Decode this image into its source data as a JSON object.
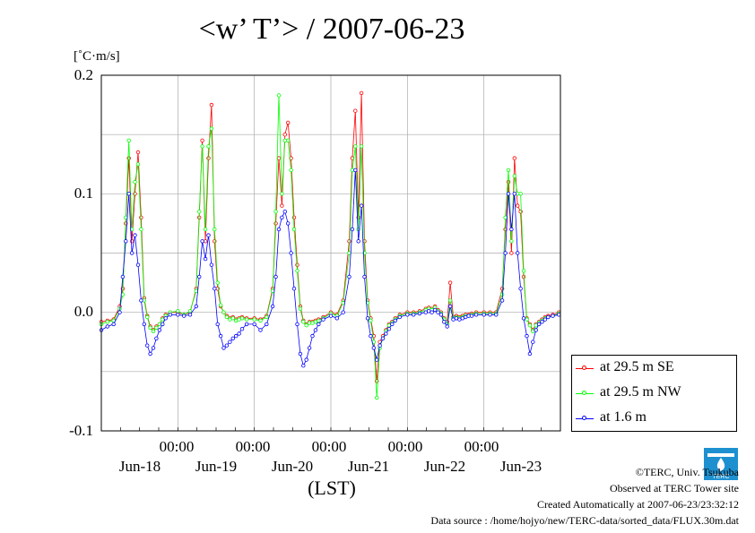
{
  "chart_data": {
    "type": "line",
    "title": "<w’ T’> / 2007-06-23",
    "ylabel": "[˚C·m/s]",
    "xlabel": "(LST)",
    "ylim": [
      -0.1,
      0.2
    ],
    "yticks": [
      "0.2",
      "0.1",
      "0.0",
      "-0.1"
    ],
    "xlim_days": [
      0,
      6
    ],
    "x_time_labels": [
      "00:00",
      "00:00",
      "00:00",
      "00:00",
      "00:00"
    ],
    "x_date_labels": [
      "Jun-18",
      "Jun-19",
      "Jun-20",
      "Jun-21",
      "Jun-22",
      "Jun-23"
    ],
    "grid": true,
    "legend_position": "lower-right outside",
    "x_days": [
      0.0,
      0.08,
      0.16,
      0.24,
      0.28,
      0.32,
      0.36,
      0.4,
      0.44,
      0.48,
      0.52,
      0.56,
      0.6,
      0.64,
      0.68,
      0.72,
      0.76,
      0.8,
      0.84,
      0.9,
      1.0,
      1.08,
      1.16,
      1.24,
      1.28,
      1.32,
      1.36,
      1.4,
      1.44,
      1.48,
      1.52,
      1.56,
      1.6,
      1.64,
      1.68,
      1.72,
      1.76,
      1.8,
      1.84,
      1.9,
      2.0,
      2.08,
      2.16,
      2.24,
      2.28,
      2.32,
      2.36,
      2.4,
      2.44,
      2.48,
      2.52,
      2.56,
      2.6,
      2.64,
      2.68,
      2.72,
      2.76,
      2.8,
      2.84,
      2.9,
      3.0,
      3.08,
      3.16,
      3.24,
      3.28,
      3.32,
      3.36,
      3.4,
      3.44,
      3.48,
      3.52,
      3.56,
      3.6,
      3.64,
      3.68,
      3.72,
      3.76,
      3.8,
      3.84,
      3.9,
      4.0,
      4.08,
      4.16,
      4.24,
      4.28,
      4.32,
      4.36,
      4.4,
      4.44,
      4.48,
      4.52,
      4.56,
      4.6,
      4.64,
      4.68,
      4.72,
      4.76,
      4.8,
      4.84,
      4.9,
      5.0,
      5.08,
      5.16,
      5.24,
      5.28,
      5.32,
      5.36,
      5.4,
      5.44,
      5.48,
      5.52,
      5.56,
      5.6,
      5.64,
      5.68,
      5.72,
      5.76,
      5.8,
      5.84,
      5.9,
      5.98
    ],
    "series": [
      {
        "name": "at 29.5 m SE",
        "color": "#ff0000",
        "values": [
          -0.008,
          -0.007,
          -0.006,
          0.005,
          0.02,
          0.075,
          0.13,
          0.06,
          0.1,
          0.135,
          0.08,
          0.012,
          -0.003,
          -0.012,
          -0.015,
          -0.012,
          -0.01,
          -0.005,
          -0.002,
          0.0,
          0.0,
          -0.002,
          0.0,
          0.02,
          0.08,
          0.145,
          0.06,
          0.13,
          0.175,
          0.06,
          0.02,
          0.005,
          0.0,
          -0.003,
          -0.005,
          -0.004,
          -0.006,
          -0.005,
          -0.004,
          -0.005,
          -0.005,
          -0.006,
          -0.003,
          0.02,
          0.075,
          0.13,
          0.09,
          0.15,
          0.16,
          0.13,
          0.08,
          0.04,
          0.005,
          -0.007,
          -0.01,
          -0.008,
          -0.008,
          -0.007,
          -0.006,
          -0.004,
          0.0,
          -0.002,
          0.01,
          0.06,
          0.13,
          0.17,
          0.08,
          0.185,
          0.06,
          0.01,
          -0.005,
          -0.02,
          -0.058,
          -0.025,
          -0.02,
          -0.015,
          -0.01,
          -0.008,
          -0.005,
          -0.002,
          0.0,
          0.0,
          0.001,
          0.003,
          0.004,
          0.003,
          0.005,
          0.002,
          0.0,
          -0.005,
          -0.008,
          0.025,
          -0.004,
          -0.003,
          -0.004,
          -0.003,
          -0.002,
          -0.002,
          -0.001,
          0.0,
          0.0,
          0.0,
          0.0,
          0.02,
          0.07,
          0.11,
          0.05,
          0.13,
          0.09,
          0.085,
          0.03,
          -0.005,
          -0.01,
          -0.015,
          -0.01,
          -0.008,
          -0.006,
          -0.004,
          -0.003,
          -0.002,
          0.0
        ]
      },
      {
        "name": "at 29.5 m NW",
        "color": "#00ff00",
        "values": [
          -0.01,
          -0.008,
          -0.007,
          0.003,
          0.015,
          0.08,
          0.145,
          0.07,
          0.11,
          0.125,
          0.07,
          0.01,
          -0.004,
          -0.013,
          -0.016,
          -0.013,
          -0.01,
          -0.006,
          -0.003,
          0.0,
          0.001,
          -0.002,
          0.001,
          0.018,
          0.085,
          0.14,
          0.07,
          0.14,
          0.155,
          0.07,
          0.025,
          0.006,
          0.0,
          -0.004,
          -0.006,
          -0.005,
          -0.007,
          -0.006,
          -0.005,
          -0.006,
          -0.006,
          -0.007,
          -0.004,
          0.018,
          0.085,
          0.183,
          0.1,
          0.145,
          0.145,
          0.12,
          0.07,
          0.035,
          0.003,
          -0.008,
          -0.011,
          -0.009,
          -0.009,
          -0.008,
          -0.007,
          -0.005,
          -0.001,
          -0.003,
          0.008,
          0.05,
          0.12,
          0.14,
          0.07,
          0.14,
          0.05,
          0.008,
          -0.007,
          -0.025,
          -0.072,
          -0.03,
          -0.022,
          -0.016,
          -0.011,
          -0.009,
          -0.006,
          -0.003,
          -0.001,
          -0.001,
          0.0,
          0.002,
          0.003,
          0.002,
          0.004,
          0.001,
          -0.001,
          -0.006,
          -0.01,
          0.01,
          -0.005,
          -0.004,
          -0.005,
          -0.004,
          -0.003,
          -0.003,
          -0.002,
          -0.001,
          -0.001,
          -0.001,
          -0.001,
          0.015,
          0.08,
          0.12,
          0.06,
          0.115,
          0.1,
          0.1,
          0.035,
          -0.006,
          -0.011,
          -0.016,
          -0.011,
          -0.009,
          -0.007,
          -0.005,
          -0.004,
          -0.003,
          -0.001
        ]
      },
      {
        "name": "at 1.6 m",
        "color": "#0000ff",
        "values": [
          -0.015,
          -0.012,
          -0.01,
          0.0,
          0.03,
          0.06,
          0.1,
          0.05,
          0.065,
          0.04,
          0.01,
          -0.01,
          -0.028,
          -0.035,
          -0.03,
          -0.022,
          -0.015,
          -0.01,
          -0.005,
          -0.002,
          -0.002,
          -0.003,
          -0.002,
          0.005,
          0.03,
          0.06,
          0.045,
          0.065,
          0.04,
          0.02,
          -0.01,
          -0.02,
          -0.03,
          -0.028,
          -0.025,
          -0.022,
          -0.02,
          -0.018,
          -0.014,
          -0.01,
          -0.01,
          -0.015,
          -0.01,
          0.005,
          0.03,
          0.07,
          0.08,
          0.085,
          0.075,
          0.05,
          0.02,
          -0.01,
          -0.035,
          -0.045,
          -0.04,
          -0.03,
          -0.02,
          -0.015,
          -0.01,
          -0.006,
          -0.003,
          -0.005,
          0.0,
          0.03,
          0.07,
          0.12,
          0.06,
          0.09,
          0.03,
          -0.005,
          -0.02,
          -0.03,
          -0.04,
          -0.028,
          -0.022,
          -0.018,
          -0.014,
          -0.01,
          -0.007,
          -0.004,
          -0.002,
          -0.002,
          -0.001,
          0.0,
          0.001,
          0.0,
          0.002,
          0.0,
          -0.002,
          -0.008,
          -0.012,
          0.005,
          -0.006,
          -0.005,
          -0.006,
          -0.005,
          -0.004,
          -0.003,
          -0.003,
          -0.002,
          -0.002,
          -0.002,
          -0.002,
          0.01,
          0.05,
          0.1,
          0.07,
          0.1,
          0.05,
          0.02,
          -0.005,
          -0.02,
          -0.035,
          -0.025,
          -0.015,
          -0.01,
          -0.008,
          -0.006,
          -0.004,
          -0.003,
          -0.002
        ]
      }
    ]
  },
  "footer": {
    "credit": "©TERC, Univ. Tsukuba",
    "observed": "Observed at TERC Tower site",
    "created": "Created Automatically at 2007-06-23/23:32:12",
    "source": "Data source : /home/hojyo/new/TERC-data/sorted_data/FLUX.30m.dat",
    "logo_text": "TERC"
  },
  "colors": {
    "grid": "#aaaaaa",
    "axis": "#000000",
    "logo": "#1e90d0"
  }
}
